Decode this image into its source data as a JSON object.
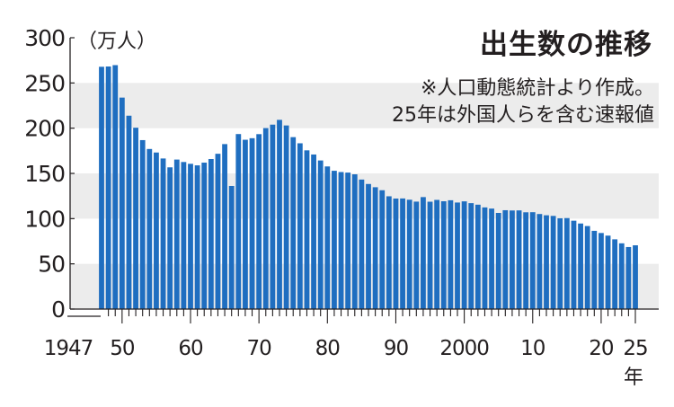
{
  "chart_data": {
    "type": "bar",
    "title": "出生数の推移",
    "notes": [
      "※人口動態統計より作成。",
      "25年は外国人らを含む速報値"
    ],
    "ylabel": "（万人）",
    "xlabel_suffix": "年",
    "ylim": [
      0,
      300
    ],
    "yticks": [
      0,
      50,
      100,
      150,
      200,
      250,
      300
    ],
    "xtick_labels": [
      {
        "year": 1947,
        "label": "1947"
      },
      {
        "year": 1950,
        "label": "50"
      },
      {
        "year": 1960,
        "label": "60"
      },
      {
        "year": 1970,
        "label": "70"
      },
      {
        "year": 1980,
        "label": "80"
      },
      {
        "year": 1990,
        "label": "90"
      },
      {
        "year": 2000,
        "label": "2000"
      },
      {
        "year": 2010,
        "label": "10"
      },
      {
        "year": 2020,
        "label": "20"
      },
      {
        "year": 2025,
        "label": "25"
      }
    ],
    "grid": "alternating horizontal bands",
    "bar_color": "#1f6ec0",
    "band_color": "#ececec",
    "x": [
      1947,
      1948,
      1949,
      1950,
      1951,
      1952,
      1953,
      1954,
      1955,
      1956,
      1957,
      1958,
      1959,
      1960,
      1961,
      1962,
      1963,
      1964,
      1965,
      1966,
      1967,
      1968,
      1969,
      1970,
      1971,
      1972,
      1973,
      1974,
      1975,
      1976,
      1977,
      1978,
      1979,
      1980,
      1981,
      1982,
      1983,
      1984,
      1985,
      1986,
      1987,
      1988,
      1989,
      1990,
      1991,
      1992,
      1993,
      1994,
      1995,
      1996,
      1997,
      1998,
      1999,
      2000,
      2001,
      2002,
      2003,
      2004,
      2005,
      2006,
      2007,
      2008,
      2009,
      2010,
      2011,
      2012,
      2013,
      2014,
      2015,
      2016,
      2017,
      2018,
      2019,
      2020,
      2021,
      2022,
      2023,
      2024,
      2025
    ],
    "values": [
      267.9,
      268.2,
      269.7,
      233.8,
      213.8,
      200.5,
      186.8,
      177.0,
      173.1,
      166.5,
      156.7,
      165.3,
      162.6,
      160.6,
      158.9,
      161.9,
      165.9,
      171.7,
      182.4,
      136.1,
      193.5,
      187.2,
      188.9,
      193.4,
      200.1,
      203.9,
      209.2,
      203.0,
      190.1,
      183.3,
      175.5,
      170.9,
      164.3,
      157.7,
      152.9,
      151.5,
      150.9,
      149.0,
      143.2,
      138.3,
      134.7,
      131.4,
      124.7,
      122.2,
      122.3,
      120.9,
      118.8,
      123.8,
      118.7,
      120.7,
      119.2,
      120.3,
      117.8,
      119.1,
      117.1,
      115.4,
      112.4,
      111.1,
      106.3,
      109.3,
      109.0,
      109.1,
      107.0,
      107.1,
      105.1,
      103.7,
      103.0,
      100.4,
      100.6,
      97.7,
      94.6,
      91.8,
      86.5,
      84.1,
      81.2,
      77.1,
      72.7,
      68.6,
      70.5
    ]
  }
}
